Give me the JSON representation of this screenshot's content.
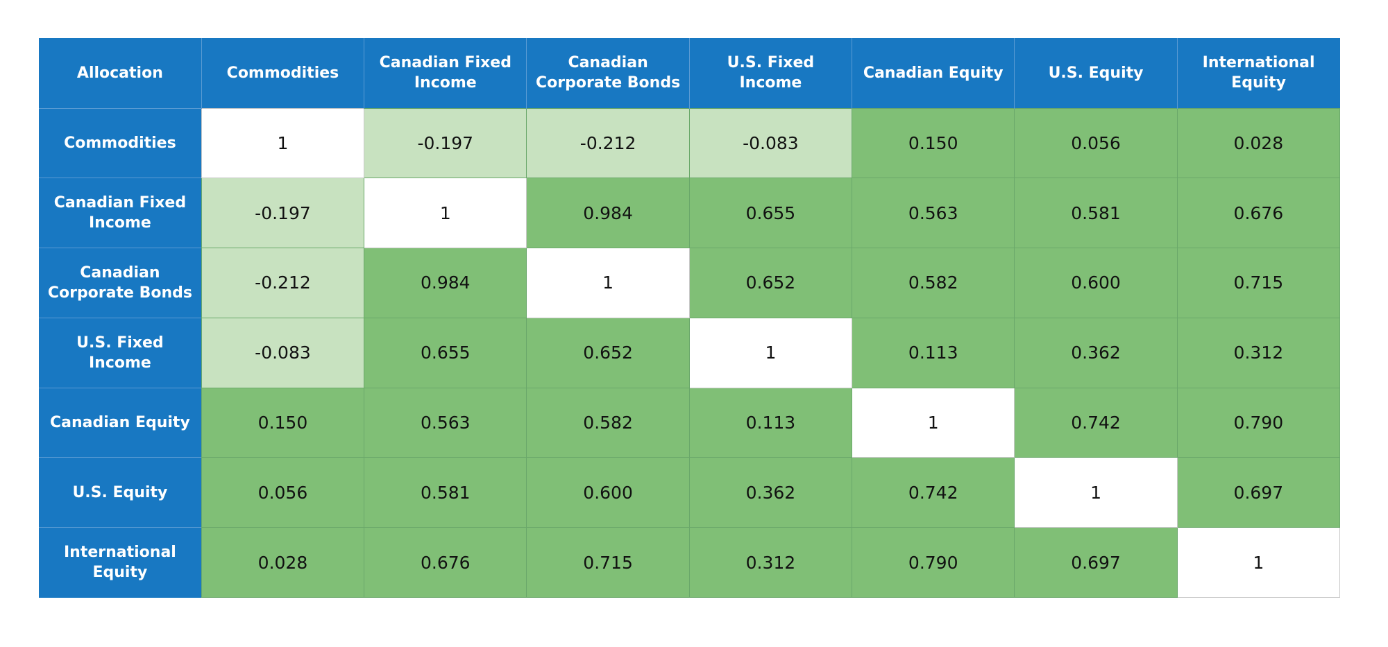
{
  "colors": {
    "header_bg": "#1878c2",
    "header_text": "#ffffff",
    "diagonal_bg": "#ffffff",
    "negative_bg": "#c8e2c0",
    "positive_bg": "#80bf76"
  },
  "chart_data": {
    "type": "table",
    "corner_label": "Allocation",
    "labels": [
      "Commodities",
      "Canadian Fixed Income",
      "Canadian Corporate Bonds",
      "U.S. Fixed Income",
      "Canadian Equity",
      "U.S. Equity",
      "International Equity"
    ],
    "rows": [
      [
        "1",
        "-0.197",
        "-0.212",
        "-0.083",
        "0.150",
        "0.056",
        "0.028"
      ],
      [
        "-0.197",
        "1",
        "0.984",
        "0.655",
        "0.563",
        "0.581",
        "0.676"
      ],
      [
        "-0.212",
        "0.984",
        "1",
        "0.652",
        "0.582",
        "0.600",
        "0.715"
      ],
      [
        "-0.083",
        "0.655",
        "0.652",
        "1",
        "0.113",
        "0.362",
        "0.312"
      ],
      [
        "0.150",
        "0.563",
        "0.582",
        "0.113",
        "1",
        "0.742",
        "0.790"
      ],
      [
        "0.056",
        "0.581",
        "0.600",
        "0.362",
        "0.742",
        "1",
        "0.697"
      ],
      [
        "0.028",
        "0.676",
        "0.715",
        "0.312",
        "0.790",
        "0.697",
        "1"
      ]
    ]
  }
}
